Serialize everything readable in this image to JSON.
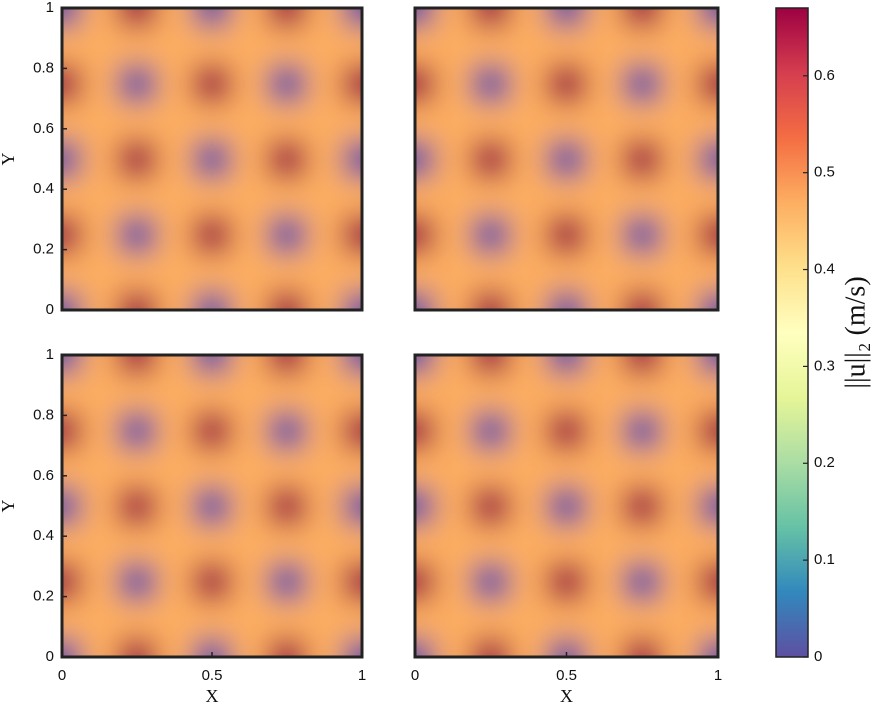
{
  "chart_data": [
    {
      "type": "heatmap",
      "x": [
        0,
        0.125,
        0.25,
        0.375,
        0.5,
        0.625,
        0.75,
        0.875,
        1
      ],
      "y": [
        0,
        0.125,
        0.25,
        0.375,
        0.5,
        0.625,
        0.75,
        0.875,
        1
      ],
      "z": [
        [
          0,
          0.47,
          0.67,
          0.47,
          0,
          0.47,
          0.67,
          0.47,
          0
        ],
        [
          0.47,
          0.47,
          0.47,
          0.47,
          0.47,
          0.47,
          0.47,
          0.47,
          0.47
        ],
        [
          0.67,
          0.47,
          0,
          0.47,
          0.67,
          0.47,
          0,
          0.47,
          0.67
        ],
        [
          0.47,
          0.47,
          0.47,
          0.47,
          0.47,
          0.47,
          0.47,
          0.47,
          0.47
        ],
        [
          0,
          0.47,
          0.67,
          0.47,
          0,
          0.47,
          0.67,
          0.47,
          0
        ],
        [
          0.47,
          0.47,
          0.47,
          0.47,
          0.47,
          0.47,
          0.47,
          0.47,
          0.47
        ],
        [
          0.67,
          0.47,
          0,
          0.47,
          0.67,
          0.47,
          0,
          0.47,
          0.67
        ],
        [
          0.47,
          0.47,
          0.47,
          0.47,
          0.47,
          0.47,
          0.47,
          0.47,
          0.47
        ],
        [
          0,
          0.47,
          0.67,
          0.47,
          0,
          0.47,
          0.67,
          0.47,
          0
        ]
      ],
      "xlim": [
        0,
        1
      ],
      "ylim": [
        0,
        1
      ],
      "yticks": [
        0,
        0.2,
        0.4,
        0.6,
        0.8,
        1
      ],
      "ylabel": "Y"
    },
    {
      "type": "heatmap",
      "x": [
        0,
        0.125,
        0.25,
        0.375,
        0.5,
        0.625,
        0.75,
        0.875,
        1
      ],
      "y": [
        0,
        0.125,
        0.25,
        0.375,
        0.5,
        0.625,
        0.75,
        0.875,
        1
      ],
      "z": [
        [
          0,
          0.47,
          0.67,
          0.47,
          0,
          0.47,
          0.67,
          0.47,
          0
        ],
        [
          0.47,
          0.47,
          0.47,
          0.47,
          0.47,
          0.47,
          0.47,
          0.47,
          0.47
        ],
        [
          0.67,
          0.47,
          0,
          0.47,
          0.67,
          0.47,
          0,
          0.47,
          0.67
        ],
        [
          0.47,
          0.47,
          0.47,
          0.47,
          0.47,
          0.47,
          0.47,
          0.47,
          0.47
        ],
        [
          0,
          0.47,
          0.67,
          0.47,
          0,
          0.47,
          0.67,
          0.47,
          0
        ],
        [
          0.47,
          0.47,
          0.47,
          0.47,
          0.47,
          0.47,
          0.47,
          0.47,
          0.47
        ],
        [
          0.67,
          0.47,
          0,
          0.47,
          0.67,
          0.47,
          0,
          0.47,
          0.67
        ],
        [
          0.47,
          0.47,
          0.47,
          0.47,
          0.47,
          0.47,
          0.47,
          0.47,
          0.47
        ],
        [
          0,
          0.47,
          0.67,
          0.47,
          0,
          0.47,
          0.67,
          0.47,
          0
        ]
      ],
      "xlim": [
        0,
        1
      ],
      "ylim": [
        0,
        1
      ]
    },
    {
      "type": "heatmap",
      "x": [
        0,
        0.125,
        0.25,
        0.375,
        0.5,
        0.625,
        0.75,
        0.875,
        1
      ],
      "y": [
        0,
        0.125,
        0.25,
        0.375,
        0.5,
        0.625,
        0.75,
        0.875,
        1
      ],
      "z": [
        [
          0,
          0.47,
          0.67,
          0.47,
          0,
          0.47,
          0.67,
          0.47,
          0
        ],
        [
          0.47,
          0.47,
          0.47,
          0.47,
          0.47,
          0.47,
          0.47,
          0.47,
          0.47
        ],
        [
          0.67,
          0.47,
          0,
          0.47,
          0.67,
          0.47,
          0,
          0.47,
          0.67
        ],
        [
          0.47,
          0.47,
          0.47,
          0.47,
          0.47,
          0.47,
          0.47,
          0.47,
          0.47
        ],
        [
          0,
          0.47,
          0.67,
          0.47,
          0,
          0.47,
          0.67,
          0.47,
          0
        ],
        [
          0.47,
          0.47,
          0.47,
          0.47,
          0.47,
          0.47,
          0.47,
          0.47,
          0.47
        ],
        [
          0.67,
          0.47,
          0,
          0.47,
          0.67,
          0.47,
          0,
          0.47,
          0.67
        ],
        [
          0.47,
          0.47,
          0.47,
          0.47,
          0.47,
          0.47,
          0.47,
          0.47,
          0.47
        ],
        [
          0,
          0.47,
          0.67,
          0.47,
          0,
          0.47,
          0.67,
          0.47,
          0
        ]
      ],
      "xlim": [
        0,
        1
      ],
      "ylim": [
        0,
        1
      ],
      "xticks": [
        0,
        0.5,
        1
      ],
      "yticks": [
        0,
        0.2,
        0.4,
        0.6,
        0.8,
        1
      ],
      "xlabel": "X",
      "ylabel": "Y"
    },
    {
      "type": "heatmap",
      "x": [
        0,
        0.125,
        0.25,
        0.375,
        0.5,
        0.625,
        0.75,
        0.875,
        1
      ],
      "y": [
        0,
        0.125,
        0.25,
        0.375,
        0.5,
        0.625,
        0.75,
        0.875,
        1
      ],
      "z": [
        [
          0,
          0.47,
          0.67,
          0.47,
          0,
          0.47,
          0.67,
          0.47,
          0
        ],
        [
          0.47,
          0.47,
          0.47,
          0.47,
          0.47,
          0.47,
          0.47,
          0.47,
          0.47
        ],
        [
          0.67,
          0.47,
          0,
          0.47,
          0.67,
          0.47,
          0,
          0.47,
          0.67
        ],
        [
          0.47,
          0.47,
          0.47,
          0.47,
          0.47,
          0.47,
          0.47,
          0.47,
          0.47
        ],
        [
          0,
          0.47,
          0.67,
          0.47,
          0,
          0.47,
          0.67,
          0.47,
          0
        ],
        [
          0.47,
          0.47,
          0.47,
          0.47,
          0.47,
          0.47,
          0.47,
          0.47,
          0.47
        ],
        [
          0.67,
          0.47,
          0,
          0.47,
          0.67,
          0.47,
          0,
          0.47,
          0.67
        ],
        [
          0.47,
          0.47,
          0.47,
          0.47,
          0.47,
          0.47,
          0.47,
          0.47,
          0.47
        ],
        [
          0,
          0.47,
          0.67,
          0.47,
          0,
          0.47,
          0.67,
          0.47,
          0
        ]
      ],
      "xlim": [
        0,
        1
      ],
      "ylim": [
        0,
        1
      ],
      "xticks": [
        0,
        0.5,
        1
      ],
      "xlabel": "X"
    }
  ],
  "colorbar": {
    "label": "||u||₂ (m/s)",
    "colormap": "spectral-reversed",
    "zlim": [
      0,
      0.67
    ],
    "ticks": [
      0,
      0.1,
      0.2,
      0.3,
      0.4,
      0.5,
      0.6
    ]
  }
}
